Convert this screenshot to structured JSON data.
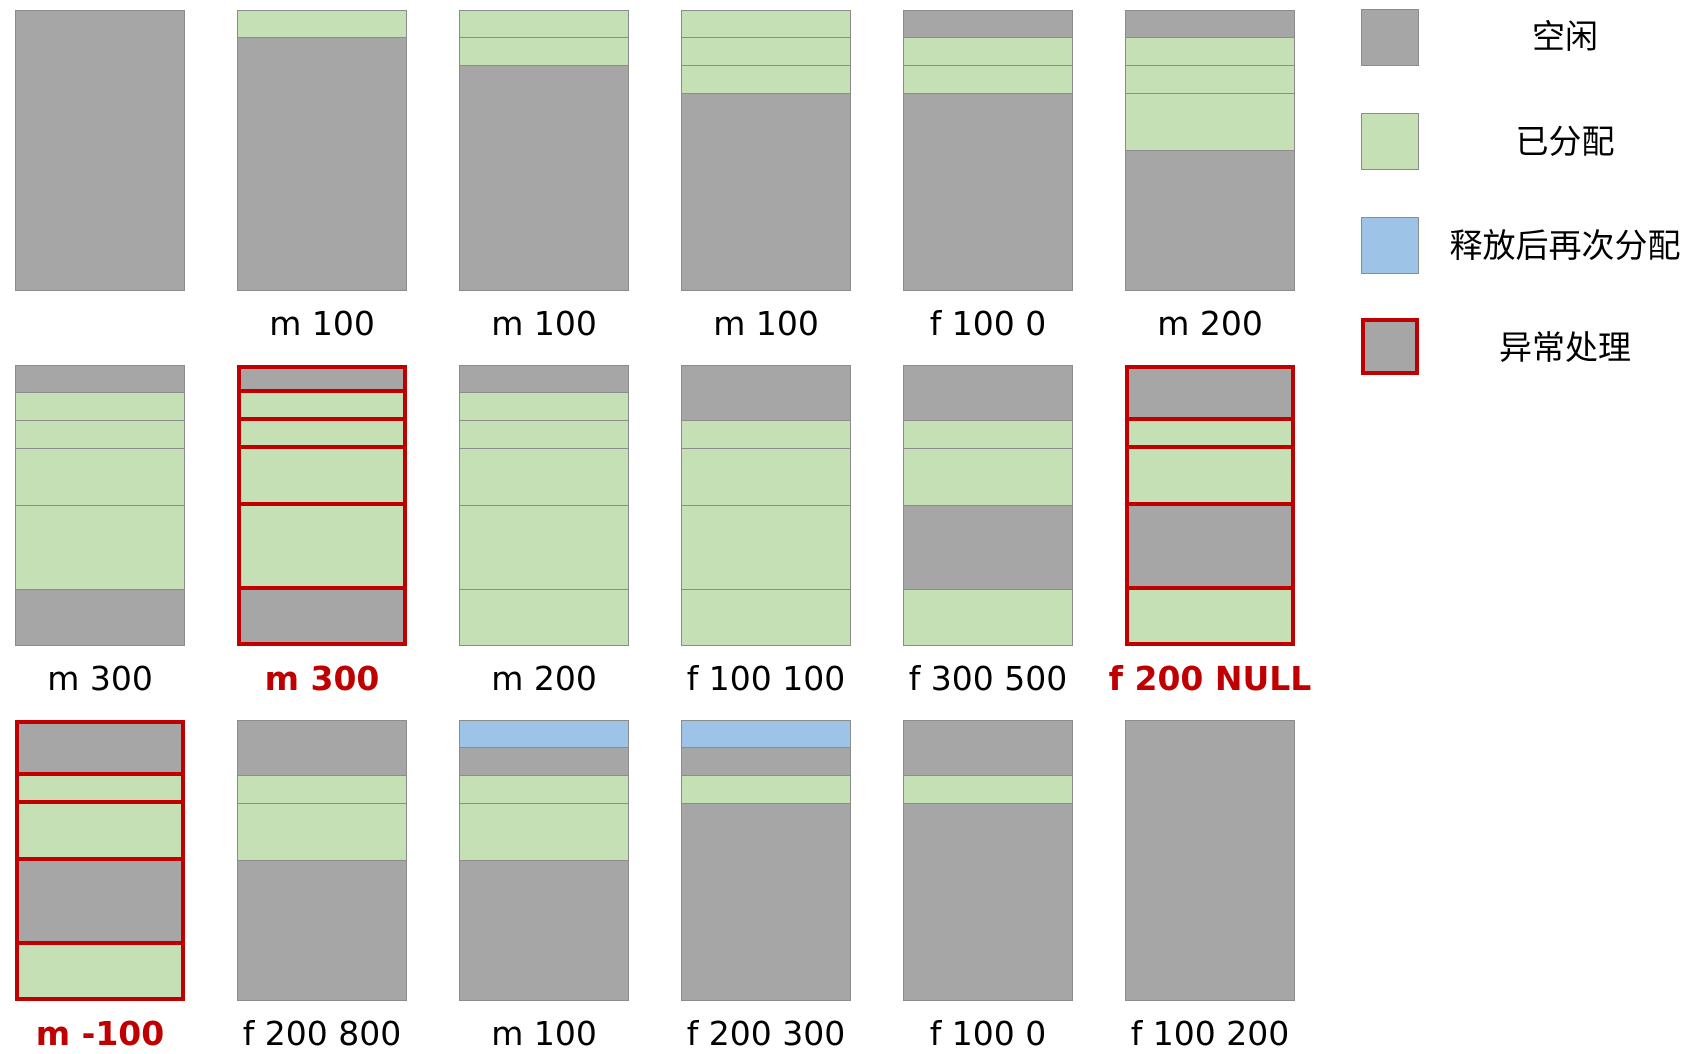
{
  "legend": [
    {
      "state": "free",
      "label": "空闲"
    },
    {
      "state": "alloc",
      "label": "已分配"
    },
    {
      "state": "realloc",
      "label": "释放后再次分配"
    },
    {
      "state": "error",
      "label": "异常处理"
    }
  ],
  "colors": {
    "free": "#a6a6a6",
    "alloc": "#c5e0b4",
    "realloc": "#9dc3e6",
    "error_border": "#c00000",
    "border": "#8c8c8c"
  },
  "unit_total": 1000,
  "steps": [
    {
      "label": "",
      "error": false,
      "segments": [
        {
          "s": "free",
          "size": 1000
        }
      ]
    },
    {
      "label": "m 100",
      "error": false,
      "segments": [
        {
          "s": "alloc",
          "size": 100
        },
        {
          "s": "free",
          "size": 900
        }
      ]
    },
    {
      "label": "m 100",
      "error": false,
      "segments": [
        {
          "s": "alloc",
          "size": 100
        },
        {
          "s": "alloc",
          "size": 100
        },
        {
          "s": "free",
          "size": 800
        }
      ]
    },
    {
      "label": "m 100",
      "error": false,
      "segments": [
        {
          "s": "alloc",
          "size": 100
        },
        {
          "s": "alloc",
          "size": 100
        },
        {
          "s": "alloc",
          "size": 100
        },
        {
          "s": "free",
          "size": 700
        }
      ]
    },
    {
      "label": "f 100 0",
      "error": false,
      "segments": [
        {
          "s": "free",
          "size": 100
        },
        {
          "s": "alloc",
          "size": 100
        },
        {
          "s": "alloc",
          "size": 100
        },
        {
          "s": "free",
          "size": 700
        }
      ]
    },
    {
      "label": "m 200",
      "error": false,
      "segments": [
        {
          "s": "free",
          "size": 100
        },
        {
          "s": "alloc",
          "size": 100
        },
        {
          "s": "alloc",
          "size": 100
        },
        {
          "s": "alloc",
          "size": 200
        },
        {
          "s": "free",
          "size": 500
        }
      ]
    },
    {
      "label": "m 300",
      "error": false,
      "segments": [
        {
          "s": "free",
          "size": 100
        },
        {
          "s": "alloc",
          "size": 100
        },
        {
          "s": "alloc",
          "size": 100
        },
        {
          "s": "alloc",
          "size": 200
        },
        {
          "s": "alloc",
          "size": 300
        },
        {
          "s": "free",
          "size": 200
        }
      ]
    },
    {
      "label": "m 300",
      "error": true,
      "segments": [
        {
          "s": "free",
          "size": 100
        },
        {
          "s": "alloc",
          "size": 100
        },
        {
          "s": "alloc",
          "size": 100
        },
        {
          "s": "alloc",
          "size": 200
        },
        {
          "s": "alloc",
          "size": 300
        },
        {
          "s": "free",
          "size": 200
        }
      ]
    },
    {
      "label": "m 200",
      "error": false,
      "segments": [
        {
          "s": "free",
          "size": 100
        },
        {
          "s": "alloc",
          "size": 100
        },
        {
          "s": "alloc",
          "size": 100
        },
        {
          "s": "alloc",
          "size": 200
        },
        {
          "s": "alloc",
          "size": 300
        },
        {
          "s": "alloc",
          "size": 200
        }
      ]
    },
    {
      "label": "f 100 100",
      "error": false,
      "segments": [
        {
          "s": "free",
          "size": 200
        },
        {
          "s": "alloc",
          "size": 100
        },
        {
          "s": "alloc",
          "size": 200
        },
        {
          "s": "alloc",
          "size": 300
        },
        {
          "s": "alloc",
          "size": 200
        }
      ]
    },
    {
      "label": "f 300 500",
      "error": false,
      "segments": [
        {
          "s": "free",
          "size": 200
        },
        {
          "s": "alloc",
          "size": 100
        },
        {
          "s": "alloc",
          "size": 200
        },
        {
          "s": "free",
          "size": 300
        },
        {
          "s": "alloc",
          "size": 200
        }
      ]
    },
    {
      "label": "f 200 NULL",
      "error": true,
      "segments": [
        {
          "s": "free",
          "size": 200
        },
        {
          "s": "alloc",
          "size": 100
        },
        {
          "s": "alloc",
          "size": 200
        },
        {
          "s": "free",
          "size": 300
        },
        {
          "s": "alloc",
          "size": 200
        }
      ]
    },
    {
      "label": "m -100",
      "error": true,
      "segments": [
        {
          "s": "free",
          "size": 200
        },
        {
          "s": "alloc",
          "size": 100
        },
        {
          "s": "alloc",
          "size": 200
        },
        {
          "s": "free",
          "size": 300
        },
        {
          "s": "alloc",
          "size": 200
        }
      ]
    },
    {
      "label": "f 200 800",
      "error": false,
      "segments": [
        {
          "s": "free",
          "size": 200
        },
        {
          "s": "alloc",
          "size": 100
        },
        {
          "s": "alloc",
          "size": 200
        },
        {
          "s": "free",
          "size": 500
        }
      ]
    },
    {
      "label": "m 100",
      "error": false,
      "segments": [
        {
          "s": "realloc",
          "size": 100
        },
        {
          "s": "free",
          "size": 100
        },
        {
          "s": "alloc",
          "size": 100
        },
        {
          "s": "alloc",
          "size": 200
        },
        {
          "s": "free",
          "size": 500
        }
      ]
    },
    {
      "label": "f 200 300",
      "error": false,
      "segments": [
        {
          "s": "realloc",
          "size": 100
        },
        {
          "s": "free",
          "size": 100
        },
        {
          "s": "alloc",
          "size": 100
        },
        {
          "s": "free",
          "size": 700
        }
      ]
    },
    {
      "label": "f 100 0",
      "error": false,
      "segments": [
        {
          "s": "free",
          "size": 200
        },
        {
          "s": "alloc",
          "size": 100
        },
        {
          "s": "free",
          "size": 700
        }
      ]
    },
    {
      "label": "f 100 200",
      "error": false,
      "segments": [
        {
          "s": "free",
          "size": 1000
        }
      ]
    }
  ]
}
